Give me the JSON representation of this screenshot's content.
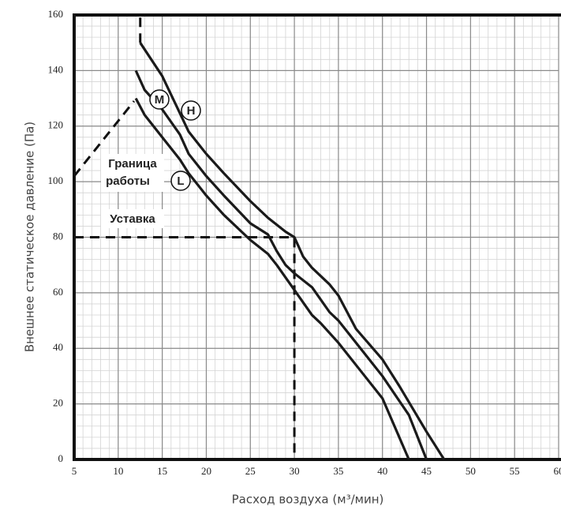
{
  "chart_data": {
    "type": "line",
    "xlabel": "Расход воздуха (м³/мин)",
    "ylabel": "Внешнее статическое давление (Па)",
    "xlim": [
      5,
      60
    ],
    "ylim": [
      0,
      160
    ],
    "xticks": [
      5,
      10,
      15,
      20,
      25,
      30,
      35,
      40,
      45,
      50,
      55,
      60
    ],
    "yticks": [
      0,
      20,
      40,
      60,
      80,
      100,
      120,
      140,
      160
    ],
    "grid": true,
    "minor_grid": {
      "x": 1,
      "y": 4
    },
    "series": [
      {
        "name": "H",
        "color": "#1a1a1a",
        "x": [
          12.5,
          15,
          16.5,
          18,
          20,
          22,
          25,
          27,
          29,
          30,
          31,
          32,
          34,
          35,
          36,
          37,
          40,
          42,
          45,
          47
        ],
        "values": [
          150,
          138,
          128,
          118,
          110,
          103,
          93,
          87,
          82,
          80,
          73,
          69,
          63,
          59,
          53,
          47,
          36,
          26,
          10,
          0
        ]
      },
      {
        "name": "M",
        "color": "#1a1a1a",
        "x": [
          12,
          13,
          15,
          17,
          18,
          20,
          22,
          25,
          27,
          28,
          29,
          30,
          32,
          34,
          35,
          36,
          38,
          40,
          43,
          45
        ],
        "values": [
          140,
          133,
          126,
          117,
          110,
          102,
          95,
          85,
          81,
          75,
          70,
          67,
          62,
          53,
          50,
          46,
          38,
          30,
          16,
          0
        ]
      },
      {
        "name": "L",
        "color": "#1a1a1a",
        "x": [
          12,
          13,
          15,
          17,
          18,
          20,
          22,
          25,
          27,
          28,
          30,
          32,
          33,
          35,
          38,
          40,
          43
        ],
        "values": [
          130,
          124,
          116,
          108,
          103,
          95,
          88,
          79,
          74,
          70,
          61,
          52,
          49,
          42,
          30,
          22,
          0
        ]
      }
    ],
    "boundary": {
      "label": [
        "Граница",
        "работы"
      ],
      "x": [
        5,
        11.8,
        null,
        12.5,
        12.5
      ],
      "values": [
        102,
        129,
        null,
        150,
        160
      ]
    },
    "setpoint": {
      "label": "Уставка",
      "x": 30,
      "y": 80
    }
  }
}
